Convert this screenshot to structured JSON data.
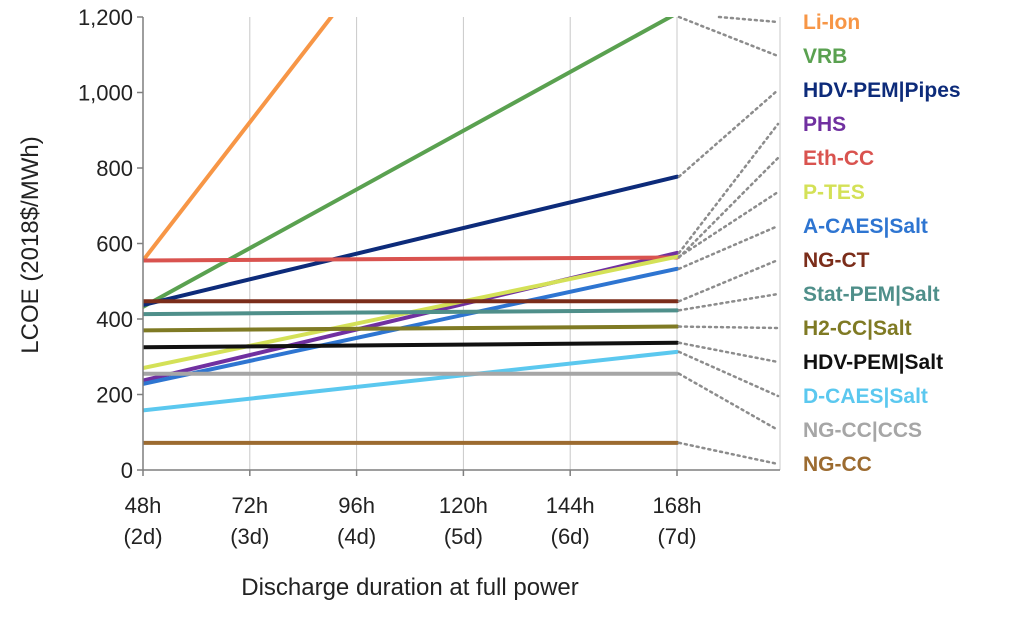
{
  "chart_data": {
    "type": "line",
    "ylabel": "LCOE (2018$/MWh)",
    "xlabel": "Discharge duration at full power",
    "ylim": [
      0,
      1200
    ],
    "yticks": [
      0,
      200,
      400,
      600,
      800,
      1000,
      1200
    ],
    "ytick_labels": [
      "0",
      "200",
      "400",
      "600",
      "800",
      "1,000",
      "1,200"
    ],
    "x": [
      48,
      168
    ],
    "xlim": [
      48,
      168
    ],
    "xticks": [
      {
        "value": 48,
        "hours": "48h",
        "days": "(2d)"
      },
      {
        "value": 72,
        "hours": "72h",
        "days": "(3d)"
      },
      {
        "value": 96,
        "hours": "96h",
        "days": "(4d)"
      },
      {
        "value": 120,
        "hours": "120h",
        "days": "(5d)"
      },
      {
        "value": 144,
        "hours": "144h",
        "days": "(6d)"
      },
      {
        "value": 168,
        "hours": "168h",
        "days": "(7d)"
      }
    ],
    "grid": {
      "vertical": true,
      "horizontal": false
    },
    "legend": "right",
    "series": [
      {
        "name": "Li-Ion",
        "color": "#f79646",
        "values": [
          555,
          2385
        ]
      },
      {
        "name": "VRB",
        "color": "#5aa150",
        "values": [
          432,
          1210
        ]
      },
      {
        "name": "HDV-PEM|Pipes",
        "color": "#0d2b7a",
        "values": [
          437,
          777
        ]
      },
      {
        "name": "PHS",
        "color": "#7030a0",
        "values": [
          237,
          575
        ]
      },
      {
        "name": "Eth-CC",
        "color": "#d9534f",
        "values": [
          555,
          563
        ]
      },
      {
        "name": "P-TES",
        "color": "#d4e157",
        "values": [
          270,
          565
        ]
      },
      {
        "name": "A-CAES|Salt",
        "color": "#2e75d1",
        "values": [
          228,
          533
        ]
      },
      {
        "name": "NG-CT",
        "color": "#7b2d1a",
        "values": [
          447,
          447
        ]
      },
      {
        "name": "Stat-PEM|Salt",
        "color": "#4f8f8a",
        "values": [
          413,
          423
        ]
      },
      {
        "name": "H2-CC|Salt",
        "color": "#7f7a24",
        "values": [
          370,
          380
        ]
      },
      {
        "name": "HDV-PEM|Salt",
        "color": "#111111",
        "values": [
          325,
          337
        ]
      },
      {
        "name": "D-CAES|Salt",
        "color": "#5bc8ef",
        "values": [
          158,
          313
        ]
      },
      {
        "name": "NG-CC|CCS",
        "color": "#a6a6a6",
        "values": [
          255,
          255
        ]
      },
      {
        "name": "NG-CC",
        "color": "#9c6b30",
        "values": [
          72,
          72
        ]
      }
    ]
  }
}
